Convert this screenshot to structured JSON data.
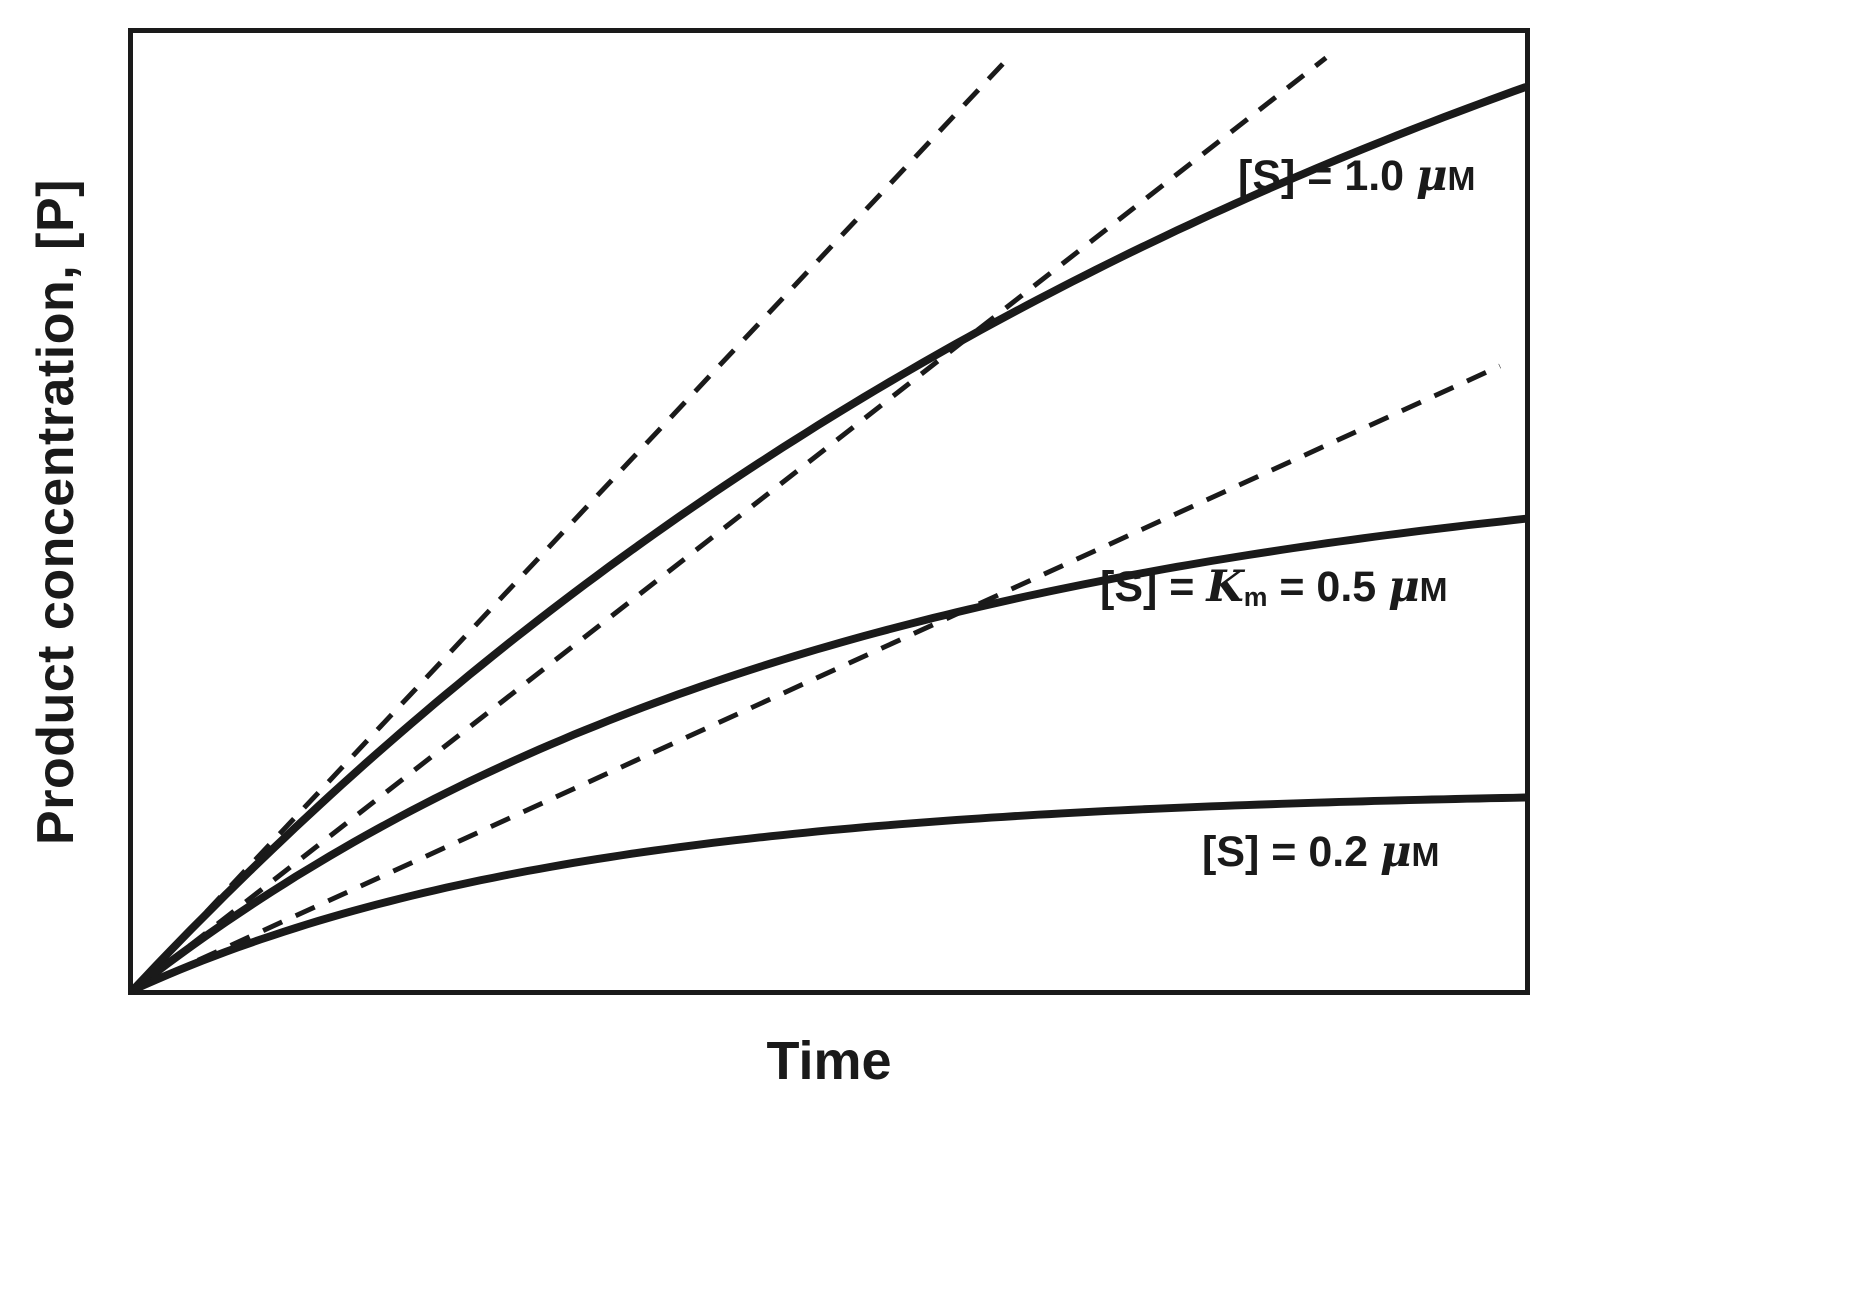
{
  "figure": {
    "x_axis_label": "Time",
    "y_axis_label": "Product concentration, [P]"
  },
  "colors": {
    "ink": "#1a1a1a",
    "background": "#ffffff"
  },
  "series_labels": {
    "s10": {
      "pre": "[S] = 1.0 ",
      "mu": "μ",
      "unit": "M"
    },
    "s05": {
      "pre": "[S] = ",
      "k": "K",
      "ksub": "m",
      "mid": " = 0.5 ",
      "mu": "μ",
      "unit": "M"
    },
    "s02": {
      "pre": "[S] = 0.2 ",
      "mu": "μ",
      "unit": "M"
    }
  },
  "chart_data": {
    "type": "line",
    "title": "",
    "xlabel": "Time",
    "ylabel": "Product concentration, [P]",
    "axes_note": "Schematic axes with no tick marks or numeric scales; x and y values below are normalized to the plot box (0–1).",
    "xlim": [
      0,
      1
    ],
    "ylim": [
      0,
      1
    ],
    "grid": false,
    "legend_position": "labels next to curves",
    "series": [
      {
        "id": "s10",
        "label": "[S] = 1.0 μM",
        "style": "solid",
        "model": "P(t) = Pmax*(1 - exp(-v0*t/Pmax))",
        "plateau": 1.42,
        "initial_slope": 1.55,
        "points": [
          [
            0,
            0
          ],
          [
            0.1,
            0.147
          ],
          [
            0.2,
            0.278
          ],
          [
            0.3,
            0.396
          ],
          [
            0.4,
            0.502
          ],
          [
            0.5,
            0.597
          ],
          [
            0.6,
            0.682
          ],
          [
            0.7,
            0.759
          ],
          [
            0.8,
            0.827
          ],
          [
            0.9,
            0.888
          ],
          [
            1.0,
            0.943
          ]
        ]
      },
      {
        "id": "s05",
        "label": "[S] = Km = 0.5 μM",
        "style": "solid",
        "model": "P(t) = Pmax*(1 - exp(-v0*t/Pmax))",
        "plateau": 0.57,
        "initial_slope": 1.136,
        "points": [
          [
            0,
            0
          ],
          [
            0.1,
            0.103
          ],
          [
            0.2,
            0.187
          ],
          [
            0.3,
            0.257
          ],
          [
            0.4,
            0.313
          ],
          [
            0.5,
            0.36
          ],
          [
            0.6,
            0.398
          ],
          [
            0.7,
            0.429
          ],
          [
            0.8,
            0.454
          ],
          [
            0.9,
            0.475
          ],
          [
            1.0,
            0.492
          ]
        ]
      },
      {
        "id": "s02",
        "label": "[S] = 0.2 μM",
        "style": "solid",
        "model": "P(t) = Pmax*(1 - exp(-v0*t/Pmax))",
        "plateau": 0.21,
        "initial_slope": 0.664,
        "points": [
          [
            0,
            0
          ],
          [
            0.1,
            0.057
          ],
          [
            0.2,
            0.098
          ],
          [
            0.3,
            0.129
          ],
          [
            0.4,
            0.151
          ],
          [
            0.5,
            0.167
          ],
          [
            0.6,
            0.179
          ],
          [
            0.7,
            0.187
          ],
          [
            0.8,
            0.193
          ],
          [
            0.9,
            0.198
          ],
          [
            1.0,
            0.201
          ]
        ]
      }
    ],
    "tangents": [
      {
        "id": "v0-s10",
        "for_series": "s10",
        "style": "dashed",
        "slope": 1.55,
        "start": [
          0,
          0
        ],
        "end": [
          0.627,
          0.971
        ]
      },
      {
        "id": "v0-s05",
        "for_series": "s05",
        "style": "dashed",
        "slope": 1.136,
        "start": [
          0,
          0
        ],
        "end": [
          0.857,
          0.974
        ]
      },
      {
        "id": "v0-s02",
        "for_series": "s02",
        "style": "dashed",
        "slope": 0.664,
        "start": [
          0,
          0
        ],
        "end": [
          0.982,
          0.652
        ]
      }
    ]
  }
}
